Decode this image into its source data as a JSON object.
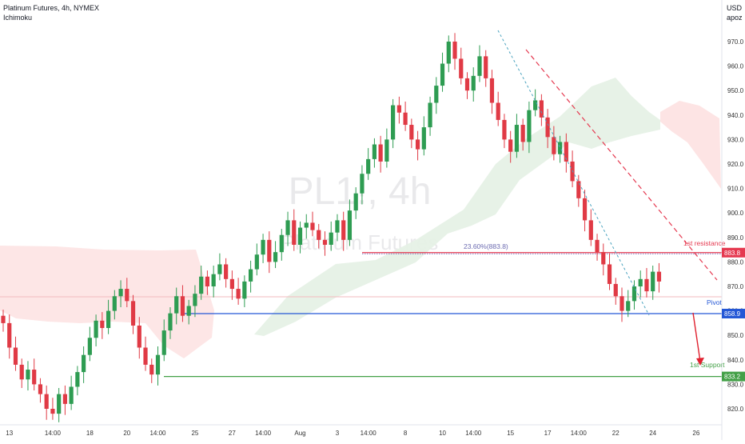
{
  "header": {
    "title": "Platinum Futures, 4h, NYMEX",
    "indicator": "Ichimoku",
    "currency": "USD",
    "scale_mode": "apoz"
  },
  "watermark": {
    "symbol": "PL1!, 4h",
    "name": "Platinum Futures"
  },
  "annotations": {
    "fib": "23.60%(883.8)",
    "resistance": "1st resistance",
    "pivot": "Pivot",
    "support": "1st Support"
  },
  "colors": {
    "up": "#2e9c52",
    "down": "#e03a45",
    "resistance": "#e53950",
    "pivot": "#2457d6",
    "support": "#43a047",
    "cloud_bull": "#e6f1e6",
    "cloud_bear": "#fde3e3"
  },
  "chart_data": {
    "type": "candlestick",
    "title": "Platinum Futures, 4h, NYMEX",
    "ylim": [
      814,
      975
    ],
    "y_ticks": [
      820,
      830,
      840,
      850,
      860,
      870,
      880,
      890,
      900,
      910,
      920,
      930,
      940,
      950,
      960,
      970
    ],
    "y_tick_labels": [
      "820.0",
      "830.0",
      "840.0",
      "850.0",
      "860.0",
      "870.0",
      "880.0",
      "890.0",
      "900.0",
      "910.0",
      "920.0",
      "930.0",
      "940.0",
      "950.0",
      "960.0",
      "970.0"
    ],
    "x_labels": [
      {
        "label": "13",
        "i": 1
      },
      {
        "label": "14:00",
        "i": 8
      },
      {
        "label": "18",
        "i": 14
      },
      {
        "label": "20",
        "i": 20
      },
      {
        "label": "14:00",
        "i": 25
      },
      {
        "label": "25",
        "i": 31
      },
      {
        "label": "27",
        "i": 37
      },
      {
        "label": "14:00",
        "i": 42
      },
      {
        "label": "Aug",
        "i": 48
      },
      {
        "label": "3",
        "i": 54
      },
      {
        "label": "14:00",
        "i": 59
      },
      {
        "label": "8",
        "i": 65
      },
      {
        "label": "10",
        "i": 71
      },
      {
        "label": "14:00",
        "i": 76
      },
      {
        "label": "15",
        "i": 82
      },
      {
        "label": "17",
        "i": 88
      },
      {
        "label": "14:00",
        "i": 93
      },
      {
        "label": "22",
        "i": 99
      },
      {
        "label": "24",
        "i": 105
      },
      {
        "label": "26",
        "i": 112
      }
    ],
    "levels": [
      {
        "name": "1st resistance",
        "value": 883.8,
        "label": "883.8"
      },
      {
        "name": "Pivot",
        "value": 858.9,
        "label": "858.9"
      },
      {
        "name": "1st Support",
        "value": 833.2,
        "label": "833.2"
      }
    ],
    "fib_level": {
      "label": "23.60%(883.8)",
      "value": 883.8
    },
    "closes": [
      855,
      845,
      838,
      832,
      836,
      830,
      826,
      820,
      818,
      826,
      822,
      829,
      835,
      842,
      849,
      856,
      853,
      860,
      866,
      869,
      864,
      854,
      845,
      838,
      834,
      842,
      852,
      859,
      866,
      858,
      862,
      867,
      874,
      870,
      875,
      879,
      873,
      869,
      865,
      872,
      877,
      883,
      889,
      880,
      884,
      891,
      897,
      887,
      894,
      896,
      893,
      889,
      887,
      892,
      897,
      889,
      901,
      908,
      916,
      922,
      928,
      921,
      930,
      944,
      941,
      936,
      930,
      926,
      935,
      945,
      952,
      961,
      970,
      963,
      955,
      950,
      956,
      964,
      955,
      945,
      938,
      930,
      925,
      936,
      929,
      942,
      946,
      939,
      931,
      924,
      929,
      921,
      913,
      906,
      897,
      889,
      884,
      879,
      871,
      866,
      860,
      864,
      870,
      873,
      868,
      876,
      872
    ]
  }
}
